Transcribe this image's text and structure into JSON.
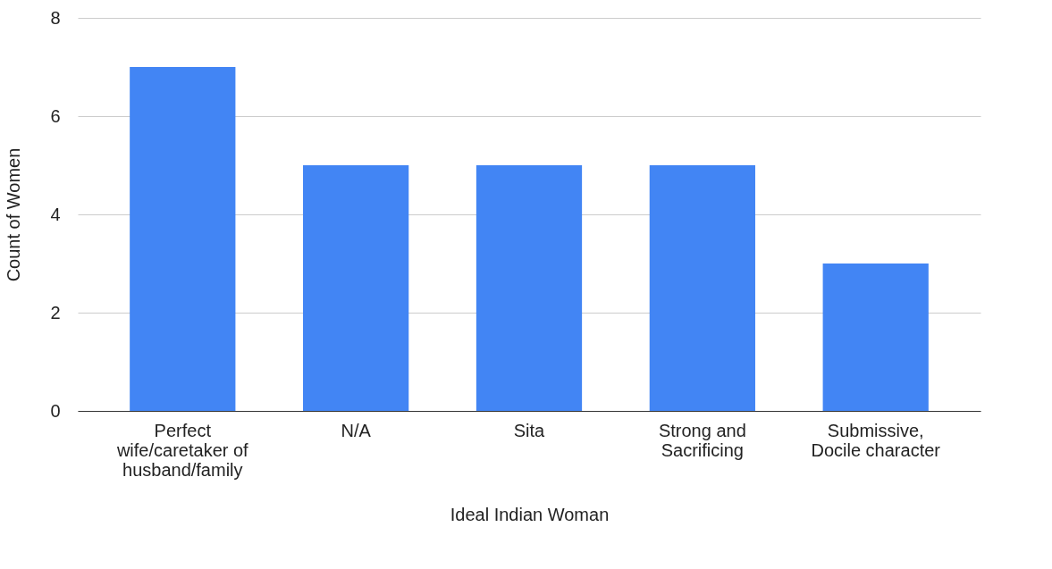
{
  "chart_data": {
    "type": "bar",
    "xlabel": "Ideal Indian Woman",
    "ylabel": "Count of Women",
    "categories": [
      "Perfect wife/caretaker of husband/family",
      "N/A",
      "Sita",
      "Strong and Sacrificing",
      "Submissive, Docile character"
    ],
    "values": [
      7,
      5,
      5,
      5,
      3
    ],
    "color": "#4285f4",
    "ylim": [
      0,
      8
    ],
    "yticks": [
      0,
      2,
      4,
      6,
      8
    ],
    "grid": "y"
  }
}
